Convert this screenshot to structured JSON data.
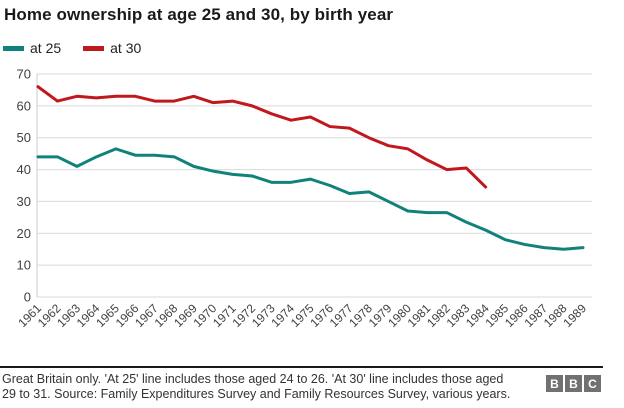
{
  "title": "Home ownership at age 25 and 30, by birth year",
  "chart_data": {
    "type": "line",
    "title": "Home ownership at age 25 and 30, by birth year",
    "xlabel": "",
    "ylabel": "",
    "x": [
      1961,
      1962,
      1963,
      1964,
      1965,
      1966,
      1967,
      1968,
      1969,
      1970,
      1971,
      1972,
      1973,
      1974,
      1975,
      1976,
      1977,
      1978,
      1979,
      1980,
      1981,
      1982,
      1983,
      1984,
      1985,
      1986,
      1987,
      1988,
      1989
    ],
    "series": [
      {
        "name": "at 25",
        "color": "#11827b",
        "values": [
          44,
          44,
          41,
          44,
          46.5,
          44.5,
          44.5,
          44,
          41,
          39.5,
          38.5,
          38,
          36,
          36,
          37,
          35,
          32.5,
          33,
          30,
          27,
          26.5,
          26.5,
          23.5,
          21,
          18,
          16.5,
          15.5,
          15,
          15.5
        ]
      },
      {
        "name": "at 30",
        "color": "#c0181c",
        "values": [
          66,
          61.5,
          63,
          62.5,
          63,
          63,
          61.5,
          61.5,
          63,
          61,
          61.5,
          60,
          57.5,
          55.5,
          56.5,
          53.5,
          53,
          50,
          47.5,
          46.5,
          43,
          40,
          40.5,
          34.5
        ]
      }
    ],
    "ylim": [
      0,
      70
    ],
    "yticks": [
      0,
      10,
      20,
      30,
      40,
      50,
      60,
      70
    ],
    "grid": true,
    "legend_position": "top-left"
  },
  "footer": {
    "note_line1": "Great Britain only. 'At 25' line includes those aged 24 to 26. 'At 30' line includes those aged",
    "note_line2": "29 to 31. Source: Family Expenditures Survey and Family Resources Survey, various years.",
    "logo_letters": [
      "B",
      "B",
      "C"
    ]
  },
  "colors": {
    "grid": "#d9d9d9",
    "axis": "#cccccc",
    "tick_text": "#404040"
  }
}
